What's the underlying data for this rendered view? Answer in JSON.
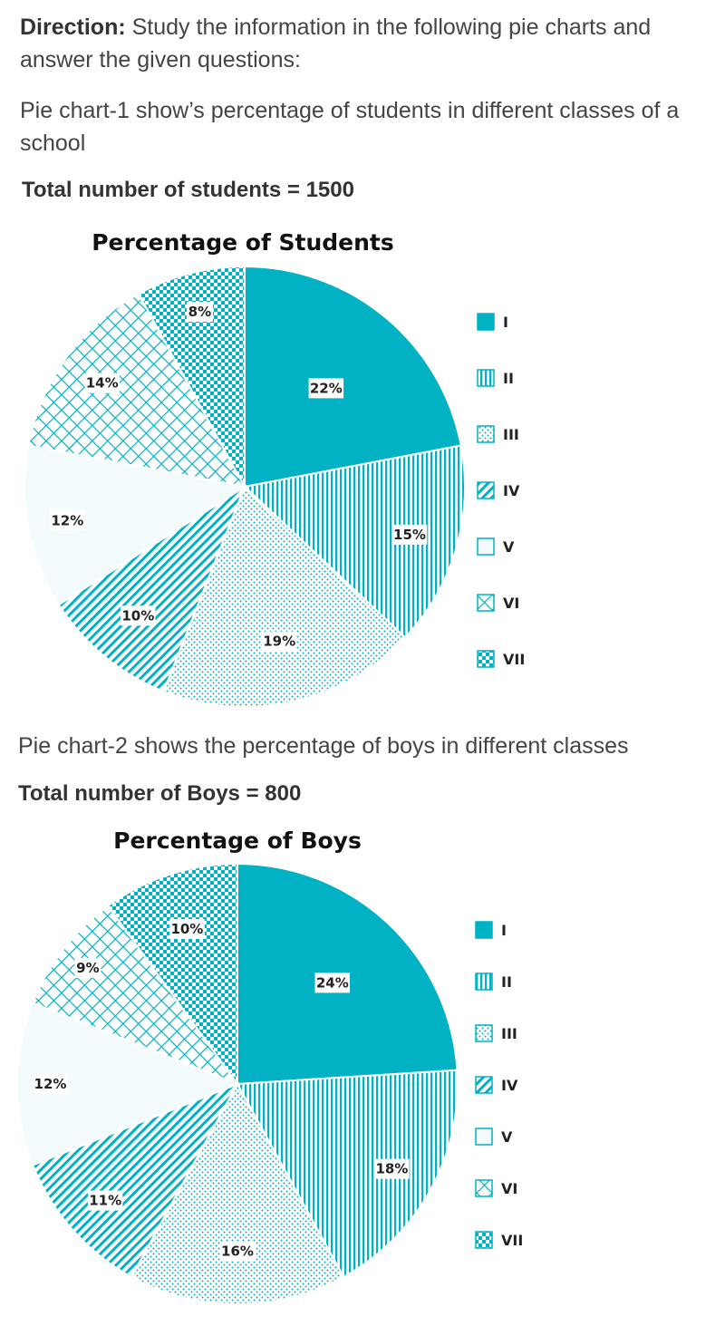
{
  "direction": {
    "label": "Direction:",
    "text": " Study the information in the following pie charts and answer the given questions:"
  },
  "intro1_line1": "Pie chart-1 show’s percentage of students in different classes of a",
  "intro1_line2": "school",
  "total1": "Total number of students = 1500",
  "intro2": "Pie chart-2 shows the percentage of boys in different classes",
  "total2": "Total number of Boys = 800",
  "colors": {
    "accent": "#00b2c3",
    "light_fill": "#f3fbfc",
    "stroke": "#00b2c3"
  },
  "chart_data": [
    {
      "type": "pie",
      "title": "Percentage of Students",
      "categories": [
        "I",
        "II",
        "III",
        "IV",
        "V",
        "VI",
        "VII"
      ],
      "values": [
        22,
        15,
        19,
        10,
        12,
        14,
        8
      ],
      "labels": [
        "22%",
        "15%",
        "19%",
        "10%",
        "12%",
        "14%",
        "8%"
      ],
      "patterns": [
        "solid",
        "vertical-lines",
        "dots",
        "diagonal-lines",
        "empty",
        "diagonal-grid",
        "checker"
      ],
      "legend_position": "right",
      "start": "top, clockwise"
    },
    {
      "type": "pie",
      "title": "Percentage of Boys",
      "categories": [
        "I",
        "II",
        "III",
        "IV",
        "V",
        "VI",
        "VII"
      ],
      "values": [
        24,
        18,
        16,
        11,
        12,
        9,
        10
      ],
      "labels": [
        "24%",
        "18%",
        "16%",
        "11%",
        "12%",
        "9%",
        "10%"
      ],
      "patterns": [
        "solid",
        "vertical-lines",
        "dots",
        "diagonal-lines",
        "empty",
        "diagonal-grid",
        "checker"
      ],
      "legend_position": "right",
      "start": "top, clockwise"
    }
  ]
}
